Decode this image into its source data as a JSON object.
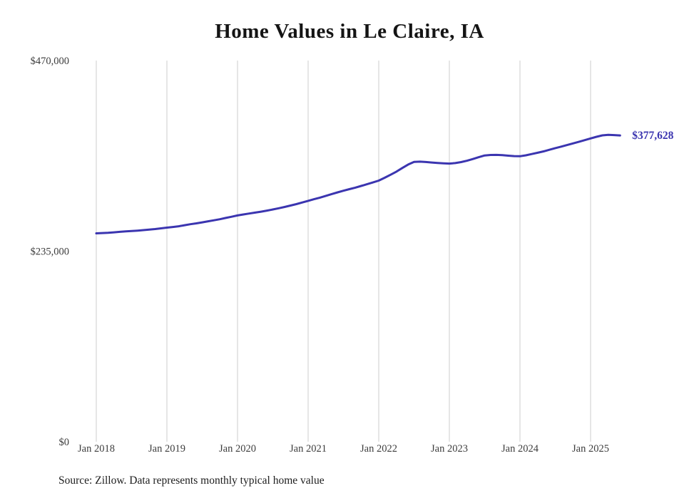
{
  "title": "Home Values in Le Claire, IA",
  "source_note": "Source: Zillow. Data represents monthly typical home value",
  "end_label": "$377,628",
  "colors": {
    "line": "#3b35b0",
    "grid": "#cccccc",
    "axis_text": "#3c3c3c",
    "title_text": "#141414",
    "background": "#ffffff"
  },
  "chart_data": {
    "type": "line",
    "title": "Home Values in Le Claire, IA",
    "xlabel": "",
    "ylabel": "",
    "ylim": [
      0,
      470000
    ],
    "grid": "vertical-only",
    "legend": "none",
    "y_ticks": [
      {
        "value": 470000,
        "label": "$470,000"
      },
      {
        "value": 235000,
        "label": "$235,000"
      },
      {
        "value": 0,
        "label": "$0"
      }
    ],
    "x_ticks": [
      "Jan 2018",
      "Jan 2019",
      "Jan 2020",
      "Jan 2021",
      "Jan 2022",
      "Jan 2023",
      "Jan 2024",
      "Jan 2025"
    ],
    "points_per_tick": 12,
    "x_start": "Jan 2018",
    "x_end": "Jun 2025",
    "last_value": 377628,
    "last_value_label": "$377,628",
    "series": [
      {
        "name": "Monthly typical home value",
        "values": [
          257000,
          257300,
          257700,
          258200,
          258800,
          259300,
          259800,
          260300,
          260900,
          261500,
          262200,
          263100,
          264000,
          264800,
          265700,
          267000,
          268200,
          269300,
          270500,
          271800,
          273000,
          274400,
          275900,
          277400,
          279000,
          280200,
          281400,
          282500,
          283700,
          285000,
          286400,
          287900,
          289500,
          291200,
          293000,
          295000,
          297000,
          299000,
          301000,
          303200,
          305400,
          307500,
          309500,
          311400,
          313300,
          315400,
          317500,
          319700,
          322000,
          325500,
          329200,
          333000,
          337500,
          341800,
          345000,
          345300,
          344900,
          344300,
          343800,
          343300,
          343000,
          343600,
          344800,
          346500,
          348600,
          350900,
          353000,
          353600,
          353700,
          353300,
          352700,
          352200,
          352000,
          353200,
          354700,
          356300,
          358000,
          360000,
          362000,
          363900,
          365800,
          367800,
          369800,
          371900,
          374000,
          376000,
          377800,
          378400,
          378100,
          377628
        ]
      }
    ]
  }
}
